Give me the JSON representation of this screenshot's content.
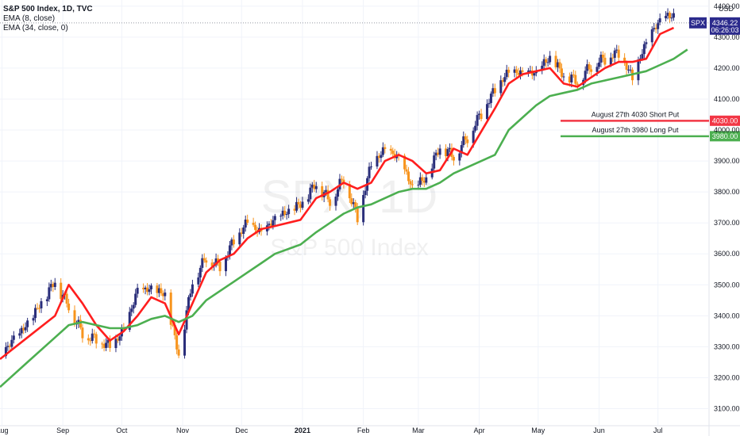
{
  "header": {
    "title": "S&P 500 Index, 1D, TVC",
    "indicators": [
      "EMA (8, close)",
      "EMA (34, close, 0)"
    ]
  },
  "axis_unit": "USD",
  "watermark": {
    "symbol": "SPX, 1D",
    "name": "S&P 500 Index"
  },
  "colors": {
    "ema_fast": "#ff1e1e",
    "ema_slow": "#4caf50",
    "up": "#2a2e7a",
    "down": "#f7941d",
    "price_tag": "#2b2a8c",
    "short_put": "#f23645",
    "long_put": "#4caf50"
  },
  "price_tag": {
    "symbol": "SPX",
    "price": "4346.22",
    "countdown": "06:26:03"
  },
  "lines": [
    {
      "label": "August 27th 4030 Short Put",
      "value": 4030,
      "tag": "4030.00",
      "color": "#f23645"
    },
    {
      "label": "August 27th 3980 Long Put",
      "value": 3980,
      "tag": "3980.00",
      "color": "#4caf50"
    }
  ],
  "chart_data": {
    "type": "line",
    "ylim": [
      3045,
      4420
    ],
    "y_ticks": [
      3100,
      3200,
      3300,
      3400,
      3500,
      3600,
      3700,
      3800,
      3900,
      4000,
      4100,
      4200,
      4300,
      4400
    ],
    "y_tick_labels": [
      "3100.00",
      "3200.00",
      "3300.00",
      "3400.00",
      "3500.00",
      "3600.00",
      "3700.00",
      "3800.00",
      "3900.00",
      "4000.00",
      "4100.00",
      "4200.00",
      "4300.00",
      "4400.00"
    ],
    "x_labels": [
      "Aug",
      "Sep",
      "Oct",
      "Nov",
      "Dec",
      "2021",
      "Feb",
      "Mar",
      "Apr",
      "May",
      "Jun",
      "Jul"
    ],
    "x_range": [
      "2020-07-31",
      "2021-07-27"
    ],
    "x_ticks": [
      "2020-08-01",
      "2020-09-01",
      "2020-10-01",
      "2020-11-01",
      "2020-12-01",
      "2021-01-01",
      "2021-02-01",
      "2021-03-01",
      "2021-04-01",
      "2021-05-01",
      "2021-06-01",
      "2021-07-01"
    ],
    "grid": true,
    "series": [
      {
        "name": "EMA (8, close)",
        "role": "ema_fast",
        "x": [
          "2020-07-31",
          "2020-08-14",
          "2020-08-28",
          "2020-09-04",
          "2020-09-11",
          "2020-09-18",
          "2020-09-25",
          "2020-10-02",
          "2020-10-09",
          "2020-10-16",
          "2020-10-23",
          "2020-10-30",
          "2020-11-06",
          "2020-11-13",
          "2020-11-20",
          "2020-11-27",
          "2020-12-04",
          "2020-12-11",
          "2020-12-18",
          "2020-12-31",
          "2021-01-08",
          "2021-01-15",
          "2021-01-22",
          "2021-01-29",
          "2021-02-05",
          "2021-02-12",
          "2021-02-19",
          "2021-02-26",
          "2021-03-05",
          "2021-03-12",
          "2021-03-19",
          "2021-03-26",
          "2021-04-09",
          "2021-04-16",
          "2021-04-23",
          "2021-04-30",
          "2021-05-07",
          "2021-05-14",
          "2021-05-21",
          "2021-05-28",
          "2021-06-04",
          "2021-06-11",
          "2021-06-18",
          "2021-06-25",
          "2021-07-02",
          "2021-07-09"
        ],
        "values": [
          3260,
          3330,
          3400,
          3500,
          3440,
          3370,
          3320,
          3350,
          3400,
          3460,
          3440,
          3340,
          3440,
          3540,
          3580,
          3600,
          3650,
          3680,
          3690,
          3710,
          3780,
          3800,
          3830,
          3810,
          3830,
          3900,
          3920,
          3900,
          3860,
          3870,
          3940,
          3920,
          4070,
          4150,
          4180,
          4190,
          4200,
          4150,
          4140,
          4170,
          4200,
          4220,
          4220,
          4230,
          4310,
          4330
        ]
      },
      {
        "name": "EMA (34, close, 0)",
        "role": "ema_slow",
        "x": [
          "2020-07-31",
          "2020-08-14",
          "2020-08-28",
          "2020-09-04",
          "2020-09-11",
          "2020-09-18",
          "2020-09-25",
          "2020-10-02",
          "2020-10-09",
          "2020-10-16",
          "2020-10-23",
          "2020-10-30",
          "2020-11-06",
          "2020-11-13",
          "2020-11-20",
          "2020-11-27",
          "2020-12-04",
          "2020-12-11",
          "2020-12-18",
          "2020-12-31",
          "2021-01-08",
          "2021-01-15",
          "2021-01-22",
          "2021-01-29",
          "2021-02-05",
          "2021-02-12",
          "2021-02-19",
          "2021-02-26",
          "2021-03-05",
          "2021-03-12",
          "2021-03-19",
          "2021-03-26",
          "2021-04-09",
          "2021-04-16",
          "2021-04-23",
          "2021-04-30",
          "2021-05-07",
          "2021-05-14",
          "2021-05-21",
          "2021-05-28",
          "2021-06-04",
          "2021-06-11",
          "2021-06-18",
          "2021-06-25",
          "2021-07-02",
          "2021-07-09",
          "2021-07-16"
        ],
        "values": [
          3170,
          3250,
          3330,
          3370,
          3380,
          3370,
          3360,
          3360,
          3370,
          3390,
          3400,
          3380,
          3400,
          3450,
          3480,
          3510,
          3540,
          3570,
          3600,
          3630,
          3670,
          3700,
          3730,
          3750,
          3760,
          3780,
          3800,
          3810,
          3810,
          3830,
          3860,
          3880,
          3920,
          4000,
          4040,
          4080,
          4110,
          4120,
          4130,
          4150,
          4160,
          4170,
          4180,
          4190,
          4210,
          4230,
          4260
        ]
      },
      {
        "name": "S&P 500 Index (close)",
        "role": "price",
        "x": [
          "2020-07-31",
          "2020-08-14",
          "2020-08-28",
          "2020-09-04",
          "2020-09-11",
          "2020-09-18",
          "2020-09-25",
          "2020-10-02",
          "2020-10-09",
          "2020-10-16",
          "2020-10-23",
          "2020-10-30",
          "2020-11-06",
          "2020-11-13",
          "2020-11-20",
          "2020-11-27",
          "2020-12-04",
          "2020-12-11",
          "2020-12-18",
          "2020-12-31",
          "2021-01-08",
          "2021-01-15",
          "2021-01-22",
          "2021-01-29",
          "2021-02-05",
          "2021-02-12",
          "2021-02-19",
          "2021-02-26",
          "2021-03-05",
          "2021-03-12",
          "2021-03-19",
          "2021-03-26",
          "2021-04-09",
          "2021-04-16",
          "2021-04-23",
          "2021-04-30",
          "2021-05-07",
          "2021-05-14",
          "2021-05-21",
          "2021-05-28",
          "2021-06-04",
          "2021-06-11",
          "2021-06-18",
          "2021-06-25",
          "2021-07-02",
          "2021-07-09"
        ],
        "values": [
          3270,
          3370,
          3508,
          3427,
          3340,
          3320,
          3298,
          3348,
          3477,
          3483,
          3465,
          3270,
          3509,
          3585,
          3557,
          3638,
          3699,
          3663,
          3709,
          3756,
          3824,
          3768,
          3841,
          3714,
          3886,
          3934,
          3906,
          3811,
          3841,
          3943,
          3913,
          3974,
          4128,
          4185,
          4180,
          4181,
          4232,
          4173,
          4155,
          4204,
          4229,
          4247,
          4166,
          4280,
          4352,
          4369
        ]
      }
    ]
  }
}
